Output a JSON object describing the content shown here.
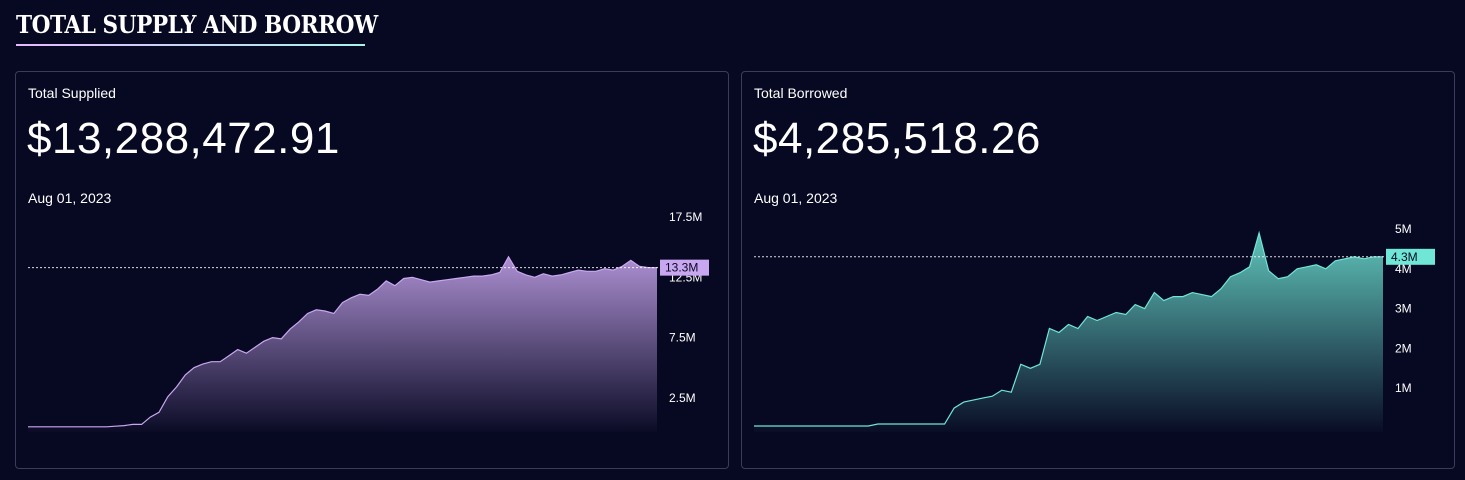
{
  "page": {
    "title": "TOTAL SUPPLY AND BORROW"
  },
  "cards": [
    {
      "label": "Total Supplied",
      "value": "$13,288,472.91",
      "date": "Aug 01, 2023",
      "current_tag": "13.3M",
      "color": "#c9a7f0"
    },
    {
      "label": "Total Borrowed",
      "value": "$4,285,518.26",
      "date": "Aug 01, 2023",
      "current_tag": "4.3M",
      "color": "#6fe6d6"
    }
  ],
  "chart_data": [
    {
      "type": "area",
      "title": "Total Supplied",
      "ylim": [
        0,
        17.5
      ],
      "yticks": [
        {
          "value": 2.5,
          "label": "2.5M"
        },
        {
          "value": 7.5,
          "label": "7.5M"
        },
        {
          "value": 12.5,
          "label": "12.5M"
        },
        {
          "value": 17.5,
          "label": "17.5M"
        }
      ],
      "current_value": 13.3,
      "current_label": "13.3M",
      "values": [
        0.1,
        0.1,
        0.1,
        0.1,
        0.1,
        0.1,
        0.1,
        0.1,
        0.1,
        0.1,
        0.15,
        0.2,
        0.3,
        0.3,
        0.9,
        1.3,
        2.6,
        3.4,
        4.4,
        5.0,
        5.3,
        5.5,
        5.5,
        6.0,
        6.5,
        6.2,
        6.7,
        7.2,
        7.5,
        7.4,
        8.2,
        8.8,
        9.5,
        9.8,
        9.7,
        9.5,
        10.4,
        10.8,
        11.1,
        11.0,
        11.5,
        12.2,
        11.8,
        12.4,
        12.5,
        12.3,
        12.1,
        12.2,
        12.3,
        12.4,
        12.5,
        12.6,
        12.6,
        12.7,
        12.9,
        14.2,
        13.0,
        12.7,
        12.5,
        12.8,
        12.6,
        12.7,
        12.9,
        13.1,
        13.0,
        13.0,
        13.2,
        13.1,
        13.4,
        13.9,
        13.4,
        13.3,
        13.3
      ]
    },
    {
      "type": "area",
      "title": "Total Borrowed",
      "ylim": [
        0,
        5.3
      ],
      "yticks": [
        {
          "value": 1,
          "label": "1M"
        },
        {
          "value": 2,
          "label": "2M"
        },
        {
          "value": 3,
          "label": "3M"
        },
        {
          "value": 4,
          "label": "4M"
        },
        {
          "value": 5,
          "label": "5M"
        }
      ],
      "current_value": 4.3,
      "current_label": "4.3M",
      "values": [
        0.05,
        0.05,
        0.05,
        0.05,
        0.05,
        0.05,
        0.05,
        0.05,
        0.05,
        0.05,
        0.05,
        0.05,
        0.05,
        0.1,
        0.1,
        0.1,
        0.1,
        0.1,
        0.1,
        0.1,
        0.1,
        0.5,
        0.65,
        0.7,
        0.75,
        0.8,
        0.95,
        0.9,
        1.6,
        1.5,
        1.6,
        2.5,
        2.4,
        2.6,
        2.5,
        2.8,
        2.7,
        2.8,
        2.9,
        2.85,
        3.1,
        3.0,
        3.4,
        3.2,
        3.3,
        3.3,
        3.4,
        3.35,
        3.3,
        3.5,
        3.8,
        3.9,
        4.05,
        4.9,
        3.95,
        3.75,
        3.8,
        4.0,
        4.05,
        4.1,
        4.0,
        4.2,
        4.25,
        4.3,
        4.25,
        4.3,
        4.3
      ]
    }
  ]
}
